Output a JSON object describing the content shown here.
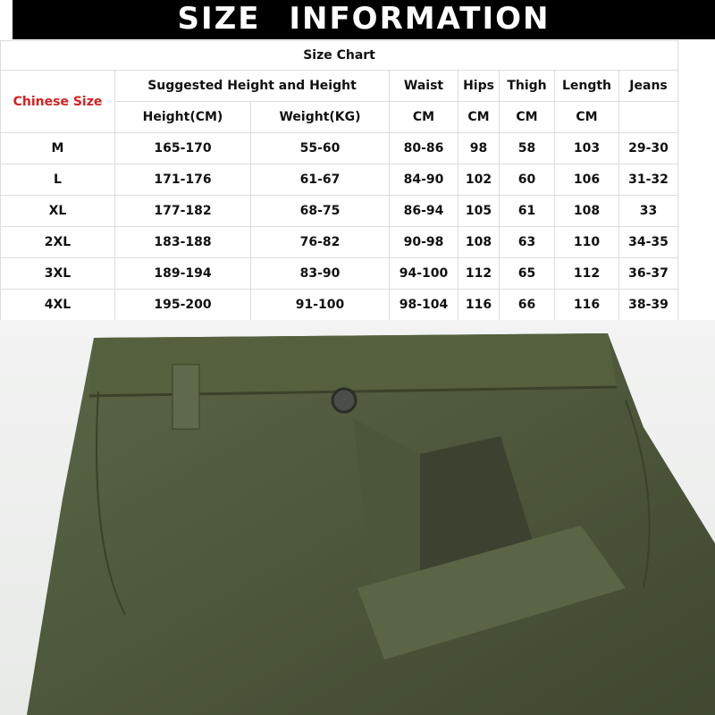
{
  "banner": {
    "title": "SIZE INFORMATION"
  },
  "table": {
    "caption": "Size Chart",
    "size_header": "Chinese Size",
    "group_header": "Suggested Height and Height",
    "headers": [
      "Waist",
      "Hips",
      "Thigh",
      "Length",
      "Jeans"
    ],
    "units": [
      "Height(CM)",
      "Weight(KG)",
      "CM",
      "CM",
      "CM",
      "CM",
      ""
    ],
    "rows": [
      [
        "M",
        "165-170",
        "55-60",
        "80-86",
        "98",
        "58",
        "103",
        "29-30"
      ],
      [
        "L",
        "171-176",
        "61-67",
        "84-90",
        "102",
        "60",
        "106",
        "31-32"
      ],
      [
        "XL",
        "177-182",
        "68-75",
        "86-94",
        "105",
        "61",
        "108",
        "33"
      ],
      [
        "2XL",
        "183-188",
        "76-82",
        "90-98",
        "108",
        "63",
        "110",
        "34-35"
      ],
      [
        "3XL",
        "189-194",
        "83-90",
        "94-100",
        "112",
        "65",
        "112",
        "36-37"
      ],
      [
        "4XL",
        "195-200",
        "91-100",
        "98-104",
        "116",
        "66",
        "116",
        "38-39"
      ]
    ]
  },
  "colors": {
    "accent": "#d62020",
    "pants": "#4f5a3c"
  }
}
